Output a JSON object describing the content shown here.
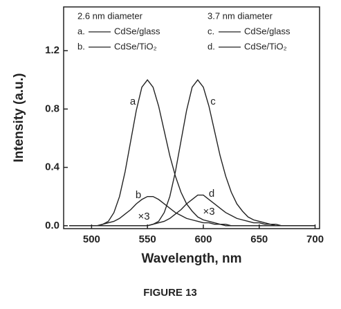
{
  "chart_data": {
    "type": "line",
    "xlabel": "Wavelength, nm",
    "ylabel": "Intensity (a.u.)",
    "caption": "FIGURE 13",
    "legend_groups": [
      "2.6 nm diameter",
      "3.7 nm diameter"
    ],
    "x": [
      480,
      485,
      490,
      495,
      500,
      505,
      510,
      515,
      520,
      525,
      530,
      535,
      540,
      545,
      550,
      555,
      560,
      565,
      570,
      575,
      580,
      585,
      590,
      595,
      600,
      605,
      610,
      615,
      620,
      625,
      630,
      635,
      640,
      645,
      650,
      655,
      660,
      665,
      670,
      675,
      680,
      685,
      690,
      695,
      700
    ],
    "series": [
      {
        "name": "CdSe/glass",
        "key": "a.",
        "curve_label": "a",
        "group": 0,
        "color": "#222222",
        "values": [
          0,
          0,
          0,
          0,
          0,
          0,
          0.01,
          0.03,
          0.09,
          0.2,
          0.37,
          0.58,
          0.79,
          0.95,
          1.0,
          0.95,
          0.82,
          0.65,
          0.48,
          0.34,
          0.23,
          0.15,
          0.1,
          0.06,
          0.04,
          0.03,
          0.02,
          0.01,
          0.01,
          0,
          0,
          0,
          0,
          0,
          0,
          0,
          0,
          0,
          0,
          0,
          0,
          0,
          0,
          0,
          0
        ]
      },
      {
        "name": "CdSe/TiO₂",
        "key": "b.",
        "curve_label": "b",
        "group": 0,
        "color": "#222222",
        "values": [
          0,
          0,
          0,
          0,
          0,
          0,
          0.01,
          0.02,
          0.03,
          0.05,
          0.08,
          0.11,
          0.15,
          0.18,
          0.2,
          0.2,
          0.18,
          0.15,
          0.12,
          0.09,
          0.07,
          0.05,
          0.04,
          0.03,
          0.02,
          0.02,
          0.01,
          0.01,
          0,
          0,
          0,
          0,
          0,
          0,
          0,
          0,
          0,
          0,
          0,
          0,
          0,
          0,
          0,
          0,
          0
        ]
      },
      {
        "name": "CdSe/glass",
        "key": "c.",
        "curve_label": "c",
        "group": 1,
        "color": "#222222",
        "values": [
          0,
          0,
          0,
          0,
          0,
          0,
          0,
          0,
          0,
          0,
          0,
          0,
          0,
          0,
          0,
          0.01,
          0.03,
          0.09,
          0.2,
          0.37,
          0.58,
          0.79,
          0.95,
          1.0,
          0.95,
          0.82,
          0.65,
          0.48,
          0.34,
          0.23,
          0.15,
          0.1,
          0.06,
          0.04,
          0.03,
          0.02,
          0.01,
          0.01,
          0,
          0,
          0,
          0,
          0,
          0,
          0
        ]
      },
      {
        "name": "CdSe/TiO₂",
        "key": "d.",
        "curve_label": "d",
        "group": 1,
        "color": "#222222",
        "values": [
          0,
          0,
          0,
          0,
          0,
          0,
          0,
          0,
          0,
          0,
          0,
          0,
          0,
          0,
          0,
          0.01,
          0.02,
          0.03,
          0.05,
          0.08,
          0.11,
          0.15,
          0.18,
          0.21,
          0.21,
          0.18,
          0.15,
          0.12,
          0.09,
          0.07,
          0.05,
          0.04,
          0.03,
          0.02,
          0.02,
          0.01,
          0.01,
          0,
          0,
          0,
          0,
          0,
          0,
          0,
          0
        ]
      }
    ],
    "annotations": [
      "×3",
      "×3"
    ],
    "xlim": [
      475,
      704
    ],
    "xticks": [
      500,
      550,
      600,
      650,
      700
    ],
    "ylim": [
      -0.02,
      1.5
    ],
    "yticks": [
      {
        "value": 0,
        "label": "0.0"
      },
      0.4,
      0.8,
      1.2
    ]
  }
}
